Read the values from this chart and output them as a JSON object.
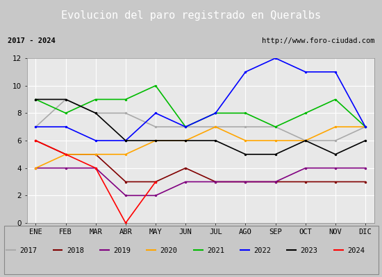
{
  "title": "Evolucion del paro registrado en Queralbs",
  "subtitle_left": "2017 - 2024",
  "subtitle_right": "http://www.foro-ciudad.com",
  "months": [
    "ENE",
    "FEB",
    "MAR",
    "ABR",
    "MAY",
    "JUN",
    "JUL",
    "AGO",
    "SEP",
    "OCT",
    "NOV",
    "DIC"
  ],
  "ylim": [
    0,
    12
  ],
  "yticks": [
    0,
    2,
    4,
    6,
    8,
    10,
    12
  ],
  "series": {
    "2017": {
      "color": "#aaaaaa",
      "linestyle": "-",
      "data": [
        7,
        9,
        8,
        8,
        7,
        7,
        7,
        7,
        7,
        6,
        6,
        7
      ]
    },
    "2018": {
      "color": "#800000",
      "linestyle": "-",
      "data": [
        6,
        5,
        5,
        3,
        3,
        4,
        3,
        3,
        3,
        3,
        3,
        3
      ]
    },
    "2019": {
      "color": "#800080",
      "linestyle": "-",
      "data": [
        4,
        4,
        4,
        2,
        2,
        3,
        3,
        3,
        3,
        4,
        4,
        4
      ]
    },
    "2020": {
      "color": "#ffa500",
      "linestyle": "-",
      "data": [
        4,
        5,
        5,
        5,
        6,
        6,
        7,
        6,
        6,
        6,
        7,
        7
      ]
    },
    "2021": {
      "color": "#00bb00",
      "linestyle": "-",
      "data": [
        9,
        8,
        9,
        9,
        10,
        7,
        8,
        8,
        7,
        8,
        9,
        7
      ]
    },
    "2022": {
      "color": "#0000ff",
      "linestyle": "-",
      "data": [
        7,
        7,
        6,
        6,
        8,
        7,
        8,
        11,
        12,
        11,
        11,
        7
      ]
    },
    "2023": {
      "color": "#000000",
      "linestyle": "-",
      "data": [
        9,
        9,
        8,
        6,
        6,
        6,
        6,
        5,
        5,
        6,
        5,
        6
      ]
    },
    "2024": {
      "color": "#ff0000",
      "linestyle": "-",
      "data": [
        6,
        5,
        4,
        0,
        3,
        null,
        null,
        null,
        null,
        null,
        null,
        null
      ]
    }
  },
  "plot_bg": "#e8e8e8",
  "header_bg": "#4f8fdf",
  "header_text_color": "#ffffff",
  "info_bg": "#ffffff",
  "info_border": "#888888",
  "grid_color": "#ffffff",
  "title_fontsize": 11,
  "tick_fontsize": 7.5,
  "legend_fontsize": 7.5
}
